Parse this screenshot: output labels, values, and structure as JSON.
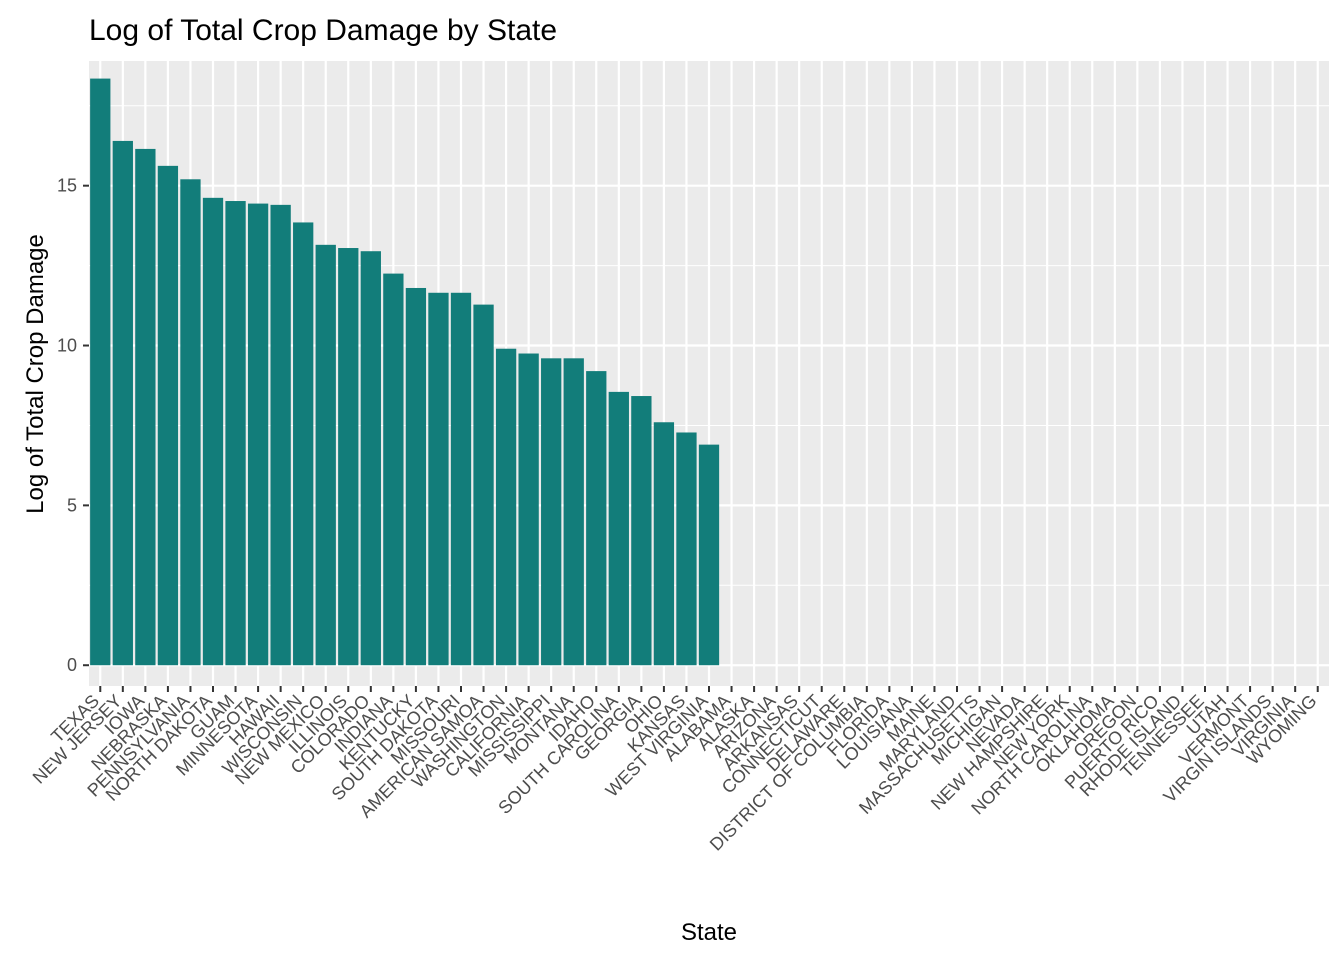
{
  "chart_data": {
    "type": "bar",
    "title": "Log of Total Crop Damage by State",
    "xlabel": "State",
    "ylabel": "Log of Total Crop Damage",
    "ylim": [
      -0.65,
      18.9
    ],
    "yticks": [
      0,
      5,
      10,
      15
    ],
    "grid": true,
    "legend": "none",
    "colors": {
      "bar": "#127d7a",
      "panel": "#ebebeb",
      "grid": "#ffffff",
      "tick": "#333333"
    },
    "categories": [
      "TEXAS",
      "NEW JERSEY",
      "IOWA",
      "NEBRASKA",
      "PENNSYLVANIA",
      "NORTH DAKOTA",
      "GUAM",
      "MINNESOTA",
      "HAWAII",
      "WISCONSIN",
      "NEW MEXICO",
      "ILLINOIS",
      "COLORADO",
      "INDIANA",
      "KENTUCKY",
      "SOUTH DAKOTA",
      "MISSOURI",
      "AMERICAN SAMOA",
      "WASHINGTON",
      "CALIFORNIA",
      "MISSISSIPPI",
      "MONTANA",
      "IDAHO",
      "SOUTH CAROLINA",
      "GEORGIA",
      "OHIO",
      "KANSAS",
      "WEST VIRGINIA",
      "ALABAMA",
      "ALASKA",
      "ARIZONA",
      "ARKANSAS",
      "CONNECTICUT",
      "DELAWARE",
      "DISTRICT OF COLUMBIA",
      "FLORIDA",
      "LOUISIANA",
      "MAINE",
      "MARYLAND",
      "MASSACHUSETTS",
      "MICHIGAN",
      "NEVADA",
      "NEW HAMPSHIRE",
      "NEW YORK",
      "NORTH CAROLINA",
      "OKLAHOMA",
      "OREGON",
      "PUERTO RICO",
      "RHODE ISLAND",
      "TENNESSEE",
      "UTAH",
      "VERMONT",
      "VIRGIN ISLANDS",
      "VIRGINIA",
      "WYOMING"
    ],
    "values": [
      18.35,
      16.4,
      16.15,
      15.62,
      15.2,
      14.62,
      14.52,
      14.44,
      14.4,
      13.85,
      13.15,
      13.05,
      12.95,
      12.25,
      11.8,
      11.65,
      11.65,
      11.28,
      9.9,
      9.75,
      9.6,
      9.6,
      9.2,
      8.55,
      8.42,
      7.6,
      7.28,
      6.9,
      0,
      0,
      0,
      0,
      0,
      0,
      0,
      0,
      0,
      0,
      0,
      0,
      0,
      0,
      0,
      0,
      0,
      0,
      0,
      0,
      0,
      0,
      0,
      0,
      0,
      0,
      0
    ]
  }
}
